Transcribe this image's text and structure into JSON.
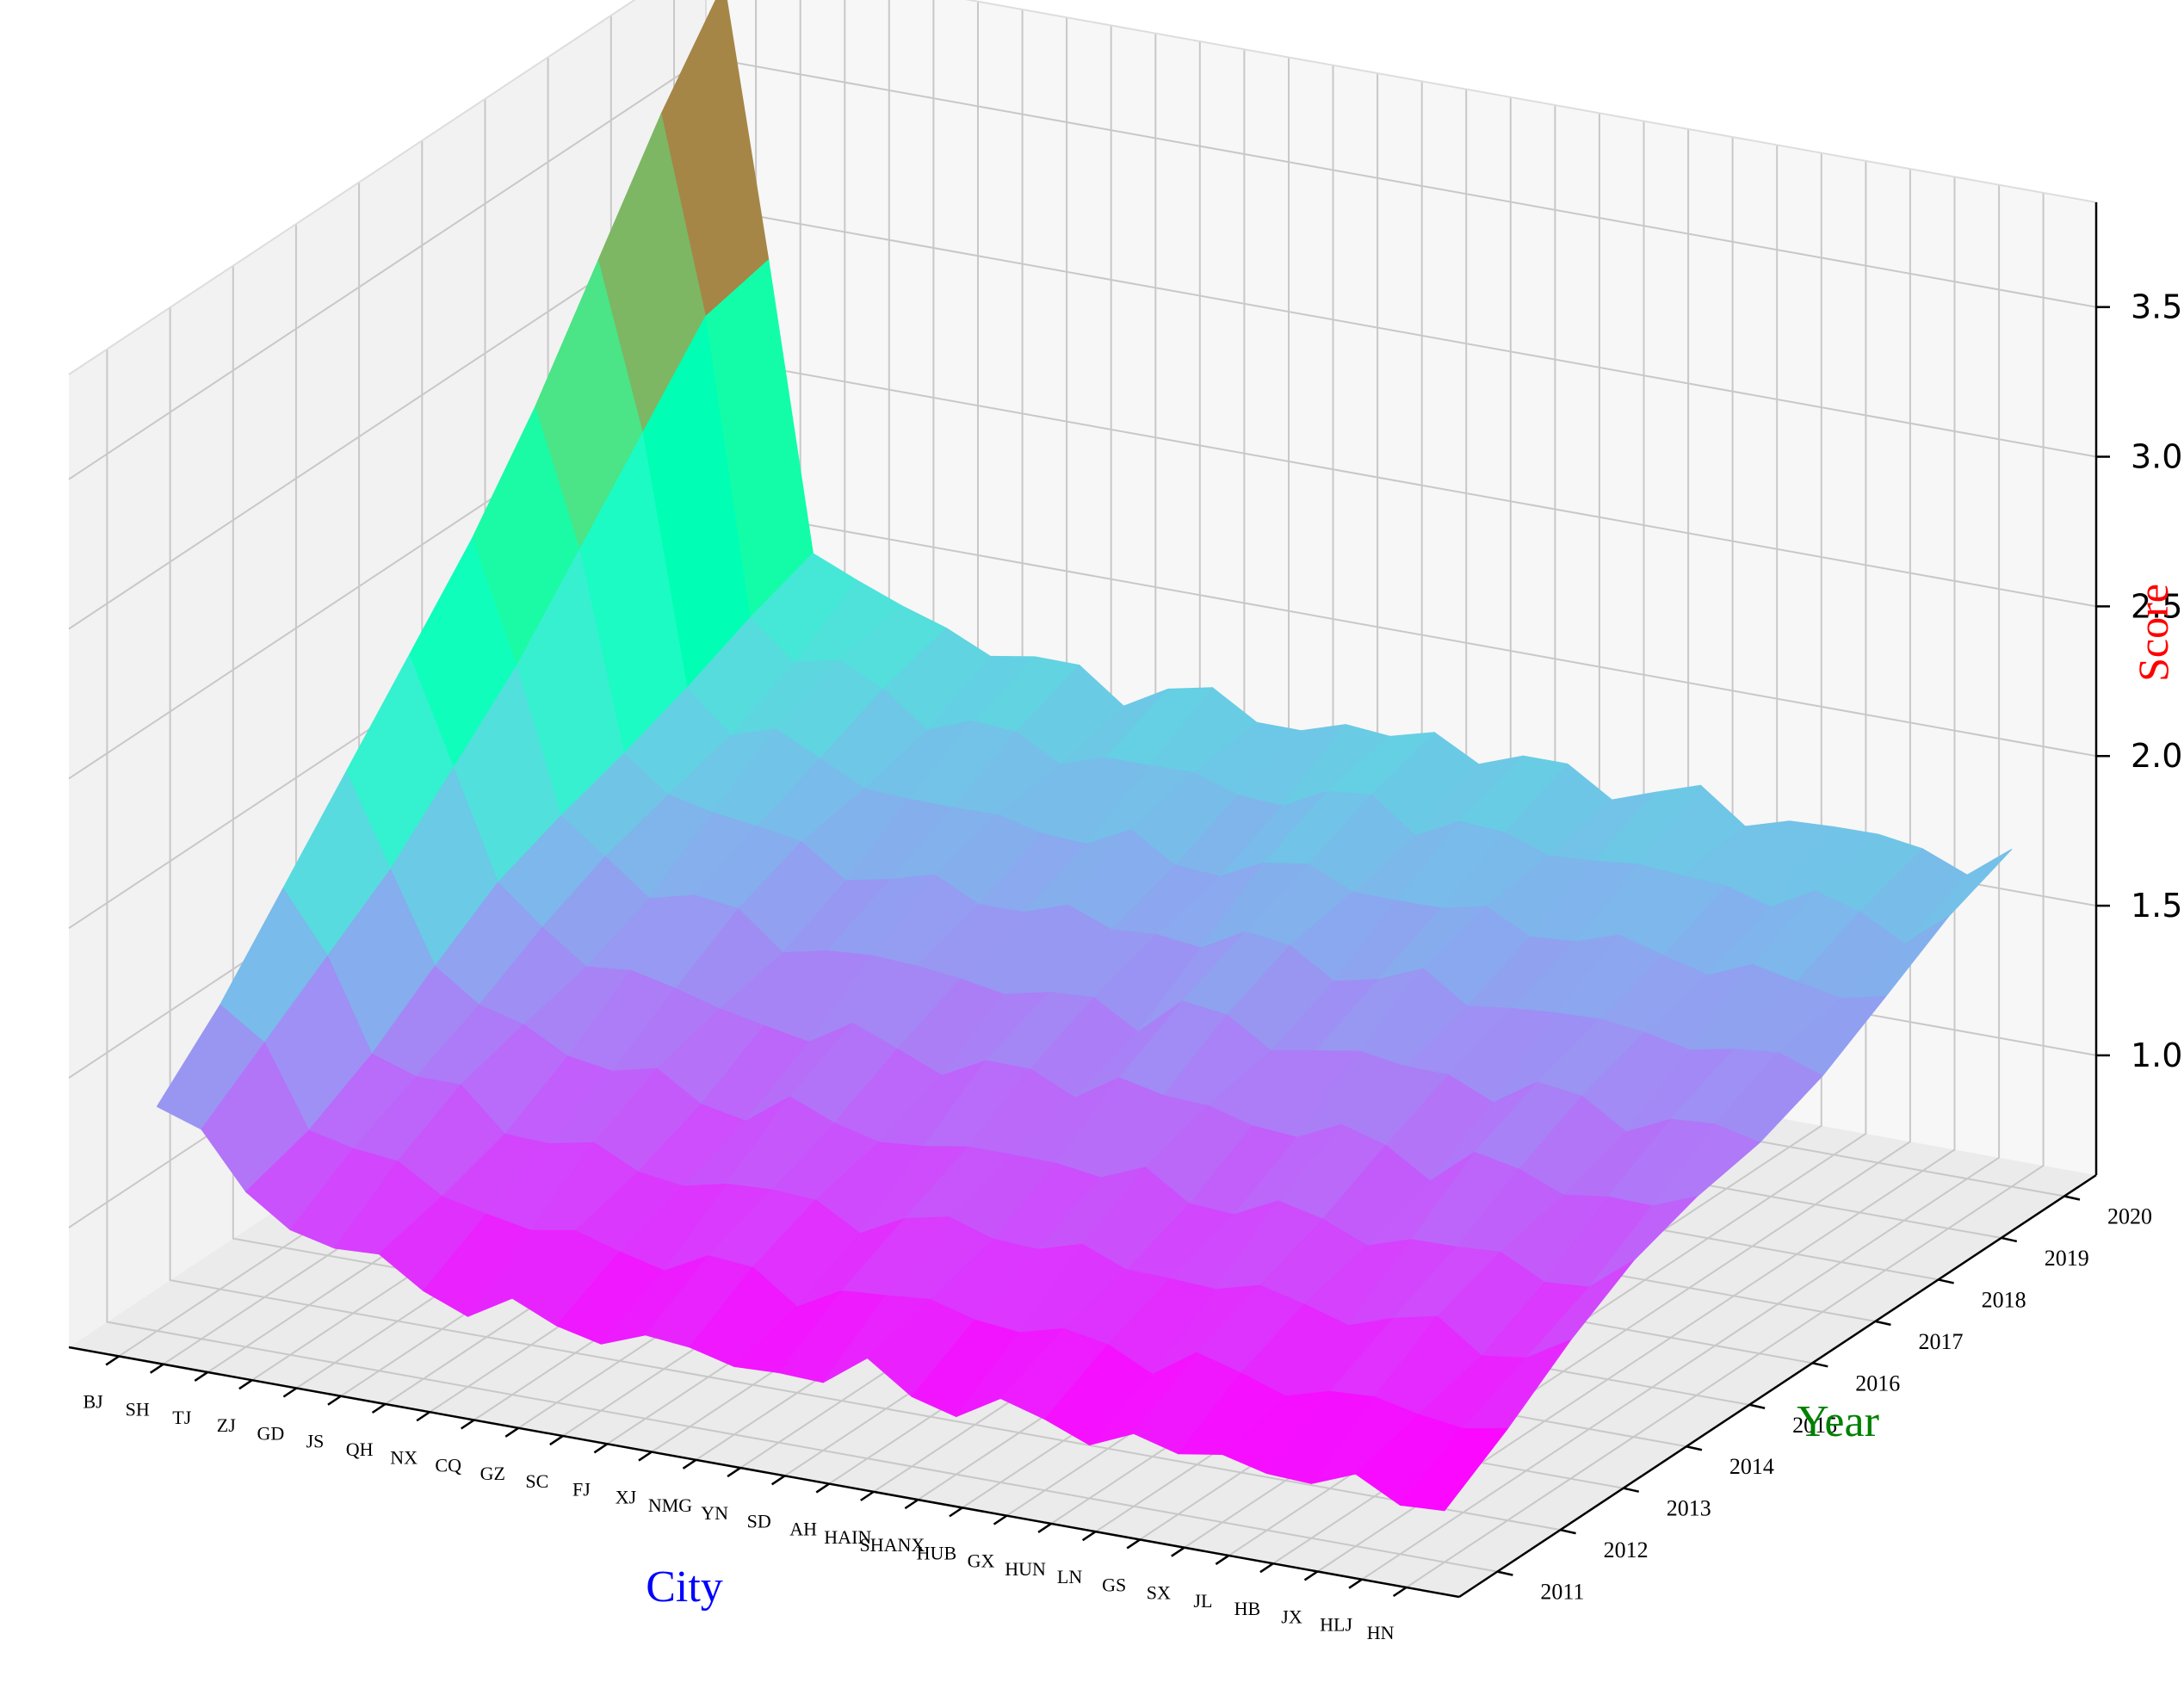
{
  "chart_data": {
    "type": "surface3d",
    "title": "",
    "xlabel": "City",
    "ylabel": "Year",
    "zlabel": "Score",
    "xlabel_color": "#0000ff",
    "ylabel_color": "#008000",
    "zlabel_color": "#ff0000",
    "colormap": "rainbow",
    "cities": [
      "BJ",
      "SH",
      "TJ",
      "ZJ",
      "GD",
      "JS",
      "QH",
      "NX",
      "CQ",
      "GZ",
      "SC",
      "FJ",
      "XJ",
      "NMG",
      "YN",
      "SD",
      "AH",
      "HAIN",
      "SHANX",
      "HUB",
      "GX",
      "HUN",
      "LN",
      "GS",
      "SX",
      "JL",
      "HB",
      "JX",
      "HLJ",
      "HN"
    ],
    "years": [
      "2011",
      "2012",
      "2013",
      "2014",
      "2015",
      "2016",
      "2017",
      "2018",
      "2019",
      "2020"
    ],
    "zticks": [
      "1.0",
      "1.5",
      "2.0",
      "2.5",
      "3.0",
      "3.5"
    ],
    "zlim": [
      0.6,
      3.85
    ],
    "grid": true,
    "z_base_by_year": [
      0.85,
      0.96,
      1.06,
      1.16,
      1.27,
      1.37,
      1.47,
      1.56,
      1.65,
      1.73
    ],
    "city_offsets": [
      0.5,
      0.32,
      0.28,
      0.18,
      0.14,
      0.1,
      0.06,
      0.03,
      0.02,
      0.0,
      0.02,
      0.01,
      0.0,
      -0.02,
      0.0,
      -0.01,
      0.04,
      0.0,
      -0.01,
      -0.02,
      -0.02,
      -0.03,
      -0.02,
      -0.06,
      -0.03,
      -0.04,
      -0.05,
      -0.06,
      -0.07,
      -0.03
    ],
    "bj_series": [
      1.35,
      1.55,
      1.8,
      2.05,
      2.3,
      2.55,
      2.85,
      3.2,
      3.55,
      3.85
    ],
    "sh_series": [
      1.3,
      1.45,
      1.6,
      1.75,
      1.95,
      2.15,
      2.4,
      2.65,
      2.9,
      2.95
    ]
  }
}
